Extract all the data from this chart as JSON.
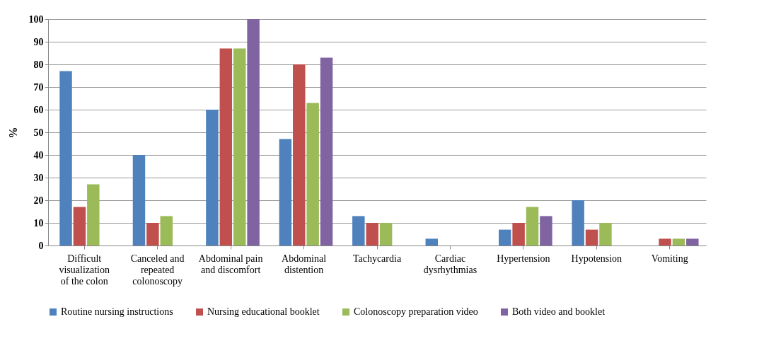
{
  "chart_data": {
    "type": "bar",
    "ylabel": "%",
    "categories": [
      "Difficult visualization of the colon",
      "Canceled and repeated colonoscopy",
      "Abdominal pain and discomfort",
      "Abdominal distention",
      "Tachycardia",
      "Cardiac dysrhythmias",
      "Hypertension",
      "Hypotension",
      "Vomiting"
    ],
    "series": [
      {
        "name": "Routine nursing instructions",
        "color": "#4f81bd",
        "values": [
          77,
          40,
          60,
          47,
          13,
          3,
          7,
          20,
          0
        ]
      },
      {
        "name": "Nursing educational booklet",
        "color": "#c0504d",
        "values": [
          17,
          10,
          87,
          80,
          10,
          0,
          10,
          7,
          3
        ]
      },
      {
        "name": "Colonoscopy preparation video",
        "color": "#9bbb59",
        "values": [
          27,
          13,
          87,
          63,
          10,
          0,
          17,
          10,
          3
        ]
      },
      {
        "name": "Both video and booklet",
        "color": "#8064a2",
        "values": [
          0,
          0,
          100,
          83,
          0,
          0,
          13,
          0,
          3
        ]
      }
    ],
    "ylim": [
      0,
      100
    ],
    "yticks": [
      0,
      10,
      20,
      30,
      40,
      50,
      60,
      70,
      80,
      90,
      100
    ],
    "grid": "y",
    "legend": "bottom"
  }
}
